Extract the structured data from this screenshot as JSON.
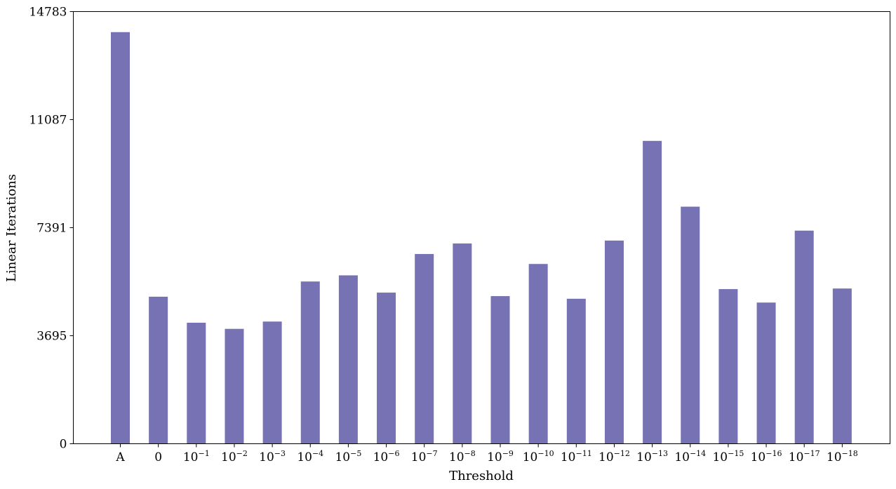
{
  "chart_data": {
    "type": "bar",
    "title": "",
    "xlabel": "Threshold",
    "ylabel": "Linear Iterations",
    "ylim": [
      0,
      14783
    ],
    "yticks": [
      0,
      3695,
      7391,
      11087,
      14783
    ],
    "grid": false,
    "categories": [
      {
        "base": "A",
        "exp": ""
      },
      {
        "base": "0",
        "exp": ""
      },
      {
        "base": "10",
        "exp": "−1"
      },
      {
        "base": "10",
        "exp": "−2"
      },
      {
        "base": "10",
        "exp": "−3"
      },
      {
        "base": "10",
        "exp": "−4"
      },
      {
        "base": "10",
        "exp": "−5"
      },
      {
        "base": "10",
        "exp": "−6"
      },
      {
        "base": "10",
        "exp": "−7"
      },
      {
        "base": "10",
        "exp": "−8"
      },
      {
        "base": "10",
        "exp": "−9"
      },
      {
        "base": "10",
        "exp": "−10"
      },
      {
        "base": "10",
        "exp": "−11"
      },
      {
        "base": "10",
        "exp": "−12"
      },
      {
        "base": "10",
        "exp": "−13"
      },
      {
        "base": "10",
        "exp": "−14"
      },
      {
        "base": "10",
        "exp": "−15"
      },
      {
        "base": "10",
        "exp": "−16"
      },
      {
        "base": "10",
        "exp": "−17"
      },
      {
        "base": "10",
        "exp": "−18"
      }
    ],
    "values": [
      14080,
      5030,
      4140,
      3930,
      4180,
      5550,
      5760,
      5170,
      6490,
      6850,
      5050,
      6150,
      4960,
      6950,
      10360,
      8110,
      5290,
      4830,
      7290,
      5310
    ],
    "bar_color": "#7672b3"
  }
}
